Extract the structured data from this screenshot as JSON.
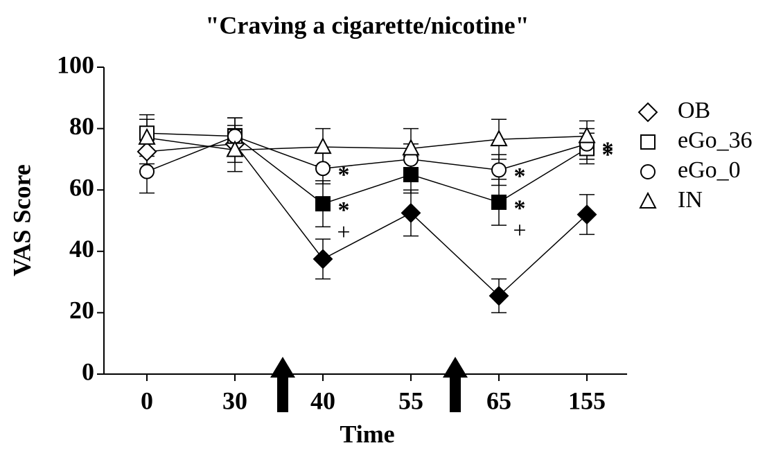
{
  "chart_data": {
    "type": "line",
    "title": "\"Craving a cigarette/nicotine\"",
    "xlabel": "Time",
    "ylabel": "VAS Score",
    "categories": [
      "0",
      "30",
      "40",
      "55",
      "65",
      "155"
    ],
    "ylim": [
      0,
      100
    ],
    "yticks": [
      0,
      20,
      40,
      60,
      80,
      100
    ],
    "series": [
      {
        "name": "OB",
        "color": "#000000",
        "marker": "diamond",
        "values": [
          72.5,
          75,
          37.5,
          52.5,
          25.5,
          52
        ],
        "errors": [
          4,
          6,
          6.5,
          7.5,
          5.5,
          6.5
        ],
        "filled": [
          false,
          false,
          true,
          true,
          true,
          true
        ]
      },
      {
        "name": "eGo_36",
        "color": "#000000",
        "marker": "square",
        "values": [
          78.5,
          77.5,
          55.5,
          65,
          56,
          73.5
        ],
        "errors": [
          6,
          6,
          7.5,
          6,
          7.5,
          5
        ],
        "filled": [
          false,
          false,
          true,
          true,
          true,
          false
        ]
      },
      {
        "name": "eGo_0",
        "color": "#000000",
        "marker": "circle",
        "values": [
          66,
          77.5,
          67,
          70,
          66.5,
          75
        ],
        "errors": [
          7,
          6,
          5,
          5,
          5,
          5
        ],
        "filled": [
          false,
          false,
          false,
          false,
          false,
          false
        ]
      },
      {
        "name": "IN",
        "color": "#000000",
        "marker": "triangle",
        "values": [
          77,
          73,
          74,
          73.5,
          76.5,
          77.5
        ],
        "errors": [
          6,
          7,
          6,
          6.5,
          6.5,
          5
        ],
        "filled": [
          false,
          false,
          false,
          false,
          false,
          false
        ]
      }
    ],
    "annotations": [
      {
        "text": "*",
        "series": 2,
        "index": 2
      },
      {
        "text": "*",
        "series": 1,
        "index": 2
      },
      {
        "text": "+",
        "series": 1,
        "index": 2
      },
      {
        "text": "*",
        "series": 2,
        "index": 4
      },
      {
        "text": "*",
        "series": 1,
        "index": 4
      },
      {
        "text": "+",
        "series": 1,
        "index": 4
      },
      {
        "text": "*",
        "series": 2,
        "index": 5
      },
      {
        "text": "*",
        "series": 1,
        "index": 5
      }
    ],
    "legend": "right"
  }
}
